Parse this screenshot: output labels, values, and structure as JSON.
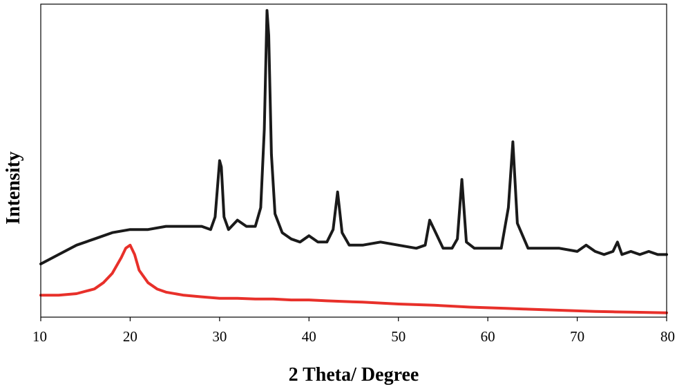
{
  "chart_data": {
    "type": "line",
    "title": "",
    "xlabel": "2 Theta/ Degree",
    "ylabel": "Intensity",
    "xlim": [
      10,
      80
    ],
    "ylim": [
      0,
      100
    ],
    "y_ticks_shown": false,
    "grid": false,
    "legend": "none",
    "x_ticks": [
      10,
      20,
      30,
      40,
      50,
      60,
      70,
      80
    ],
    "x_tick_labels": [
      "10",
      "20",
      "30",
      "40",
      "50",
      "60",
      "70",
      "80"
    ],
    "series": [
      {
        "color": "#1a1a1a",
        "x": [
          10,
          12,
          14,
          16,
          18,
          20,
          22,
          24,
          26,
          28,
          29,
          29.5,
          30,
          30.2,
          30.5,
          31,
          32,
          33,
          34,
          34.6,
          35,
          35.3,
          35.5,
          35.8,
          36.2,
          37,
          38,
          39,
          40,
          41,
          42,
          42.7,
          43.2,
          43.7,
          44.5,
          46,
          48,
          50,
          52,
          53,
          53.5,
          54,
          55,
          56,
          56.6,
          57.1,
          57.6,
          58.5,
          60,
          61.5,
          62.3,
          62.8,
          63.3,
          64.5,
          66,
          68,
          70,
          71,
          72,
          73,
          74,
          74.5,
          75,
          76,
          77,
          78,
          79,
          80
        ],
        "y": [
          17,
          20,
          23,
          25,
          27,
          28,
          28,
          29,
          29,
          29,
          28,
          32,
          50,
          48,
          32,
          28,
          31,
          29,
          29,
          35,
          60,
          98,
          90,
          52,
          33,
          27,
          25,
          24,
          26,
          24,
          24,
          28,
          40,
          27,
          23,
          23,
          24,
          23,
          22,
          23,
          31,
          28,
          22,
          22,
          25,
          44,
          24,
          22,
          22,
          22,
          35,
          56,
          30,
          22,
          22,
          22,
          21,
          23,
          21,
          20,
          21,
          24,
          20,
          21,
          20,
          21,
          20,
          20
        ]
      },
      {
        "color": "#e8302a",
        "x": [
          10,
          12,
          14,
          16,
          17,
          18,
          19,
          19.5,
          20,
          20.5,
          21,
          22,
          23,
          24,
          26,
          28,
          30,
          32,
          34,
          36,
          38,
          40,
          42,
          44,
          46,
          48,
          50,
          52,
          54,
          56,
          58,
          60,
          62,
          64,
          66,
          68,
          70,
          72,
          74,
          76,
          78,
          80
        ],
        "y": [
          7,
          7,
          7.5,
          9,
          11,
          14,
          19,
          22,
          23,
          20,
          15,
          11,
          9,
          8,
          7,
          6.5,
          6,
          6,
          5.8,
          5.8,
          5.5,
          5.5,
          5.2,
          5,
          4.8,
          4.5,
          4.2,
          4,
          3.8,
          3.5,
          3.2,
          3,
          2.8,
          2.6,
          2.4,
          2.2,
          2,
          1.8,
          1.7,
          1.6,
          1.5,
          1.4
        ]
      }
    ]
  }
}
